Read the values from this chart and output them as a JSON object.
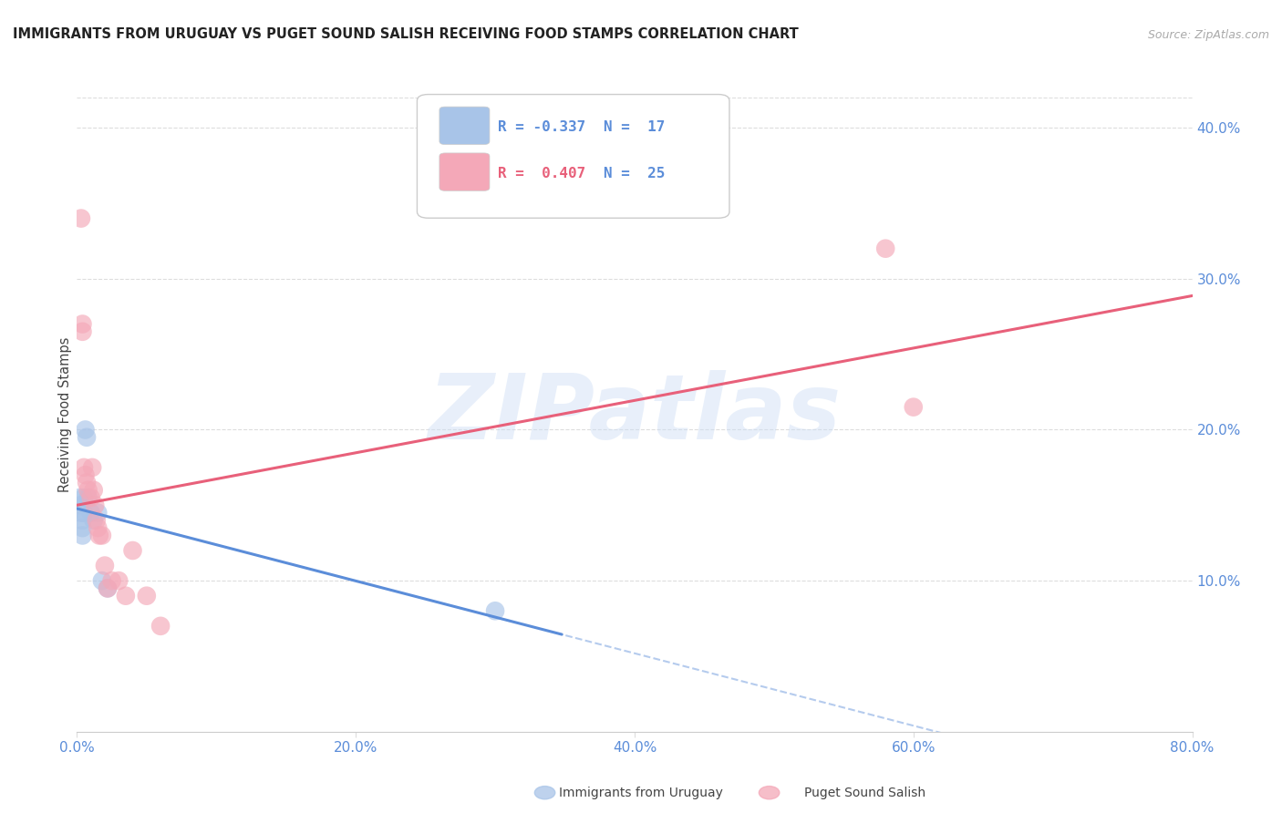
{
  "title": "IMMIGRANTS FROM URUGUAY VS PUGET SOUND SALISH RECEIVING FOOD STAMPS CORRELATION CHART",
  "source": "Source: ZipAtlas.com",
  "ylabel": "Receiving Food Stamps",
  "xlim": [
    0.0,
    0.8
  ],
  "ylim": [
    0.0,
    0.42
  ],
  "xticks": [
    0.0,
    0.2,
    0.4,
    0.6,
    0.8
  ],
  "xticklabels": [
    "0.0%",
    "20.0%",
    "40.0%",
    "60.0%",
    "80.0%"
  ],
  "yticks_right": [
    0.1,
    0.2,
    0.3,
    0.4
  ],
  "yticklabels_right": [
    "10.0%",
    "20.0%",
    "30.0%",
    "40.0%"
  ],
  "background_color": "#ffffff",
  "watermark_text": "ZIPatlas",
  "series1_label": "Immigrants from Uruguay",
  "series1_color": "#a8c4e8",
  "series2_label": "Puget Sound Salish",
  "series2_color": "#f4a8b8",
  "series1_x": [
    0.002,
    0.003,
    0.003,
    0.004,
    0.004,
    0.004,
    0.005,
    0.005,
    0.006,
    0.007,
    0.008,
    0.01,
    0.012,
    0.015,
    0.018,
    0.022,
    0.3
  ],
  "series1_y": [
    0.155,
    0.15,
    0.145,
    0.14,
    0.135,
    0.13,
    0.155,
    0.145,
    0.2,
    0.195,
    0.155,
    0.145,
    0.14,
    0.145,
    0.1,
    0.095,
    0.08
  ],
  "series2_x": [
    0.003,
    0.004,
    0.004,
    0.005,
    0.006,
    0.007,
    0.008,
    0.01,
    0.011,
    0.012,
    0.013,
    0.014,
    0.015,
    0.016,
    0.018,
    0.02,
    0.022,
    0.025,
    0.03,
    0.035,
    0.04,
    0.05,
    0.06,
    0.58,
    0.6
  ],
  "series2_y": [
    0.34,
    0.27,
    0.265,
    0.175,
    0.17,
    0.165,
    0.16,
    0.155,
    0.175,
    0.16,
    0.15,
    0.14,
    0.135,
    0.13,
    0.13,
    0.11,
    0.095,
    0.1,
    0.1,
    0.09,
    0.12,
    0.09,
    0.07,
    0.32,
    0.215
  ],
  "line1_color": "#5b8dd9",
  "line1_solid_end": 0.35,
  "line2_color": "#e8607a",
  "grid_color": "#dddddd",
  "axis_color": "#5b8dd9",
  "title_color": "#222222",
  "source_color": "#aaaaaa",
  "legend_items": [
    {
      "color": "#a8c4e8",
      "R": "R = -0.337",
      "N": "N =  17"
    },
    {
      "color": "#f4a8b8",
      "R": "R =  0.407",
      "N": "N =  25"
    }
  ]
}
